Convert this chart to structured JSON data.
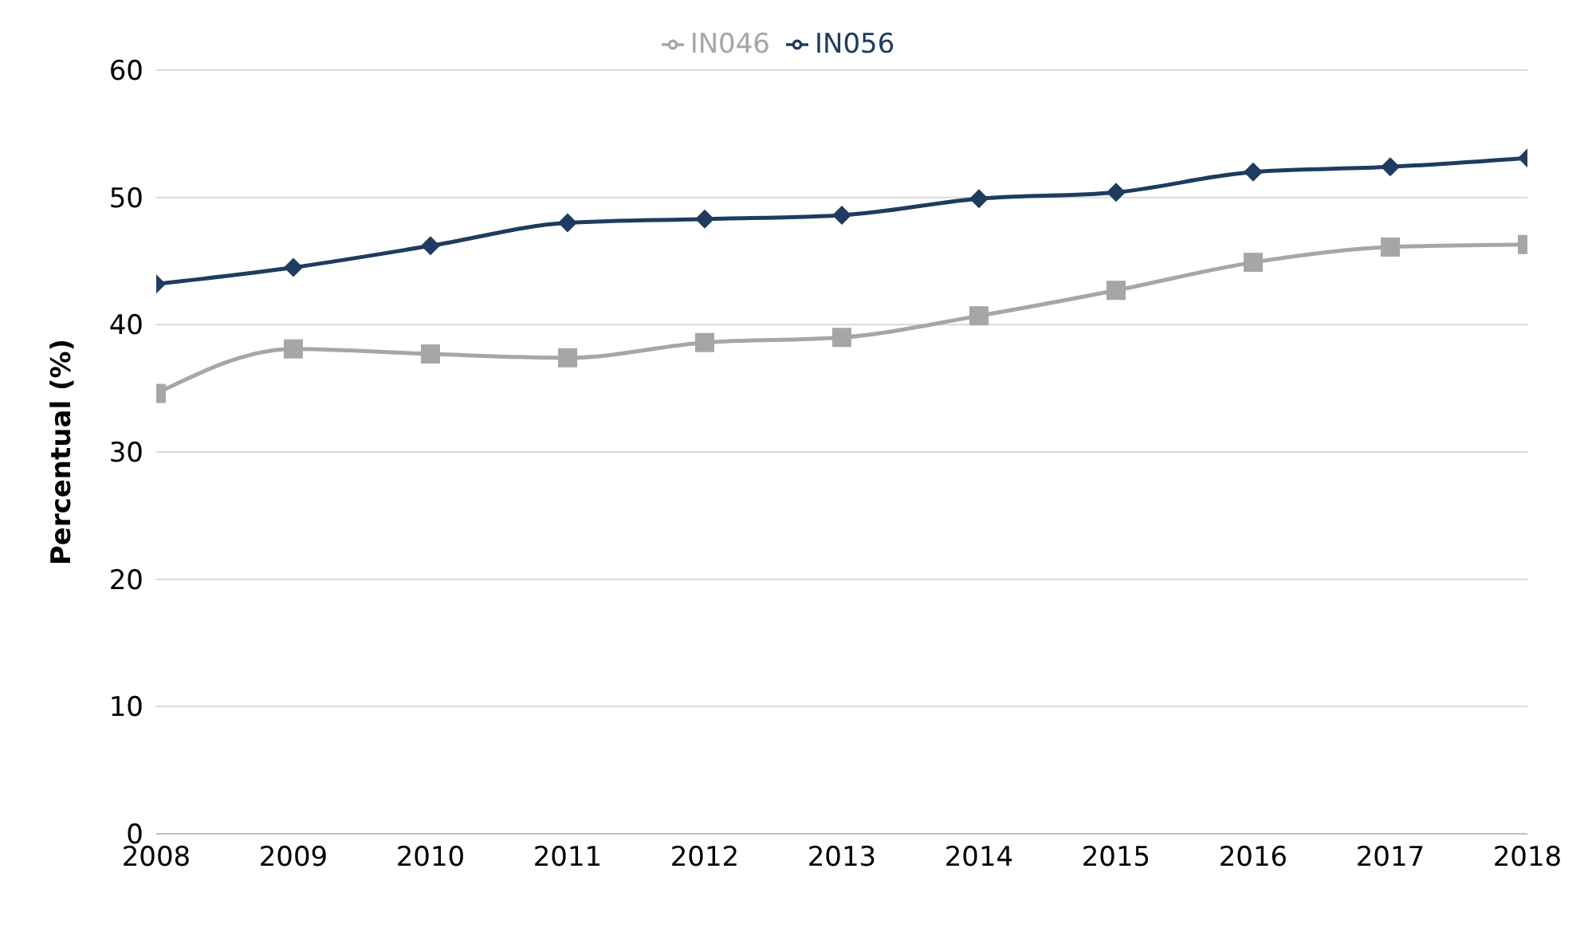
{
  "chart_data": {
    "type": "line",
    "ylabel": "Percentual (%)",
    "x": [
      2008,
      2009,
      2010,
      2011,
      2012,
      2013,
      2014,
      2015,
      2016,
      2017,
      2018
    ],
    "xlim": [
      2008,
      2018
    ],
    "xticks": [
      2008,
      2009,
      2010,
      2011,
      2012,
      2013,
      2014,
      2015,
      2016,
      2017,
      2018
    ],
    "ylim": [
      0,
      60
    ],
    "yticks": [
      0,
      10,
      20,
      30,
      40,
      50,
      60
    ],
    "grid": "y",
    "legend": "top",
    "series": [
      {
        "name": "IN056",
        "color": "#1f3b60",
        "marker": "diamond",
        "values": [
          43.2,
          44.5,
          46.2,
          48.0,
          48.3,
          48.6,
          49.9,
          50.4,
          52.0,
          52.4,
          53.1
        ]
      },
      {
        "name": "IN046",
        "color": "#a6a6a6",
        "marker": "square",
        "values": [
          34.6,
          38.1,
          37.7,
          37.4,
          38.6,
          39.0,
          40.7,
          42.7,
          44.9,
          46.1,
          46.3
        ]
      }
    ]
  }
}
